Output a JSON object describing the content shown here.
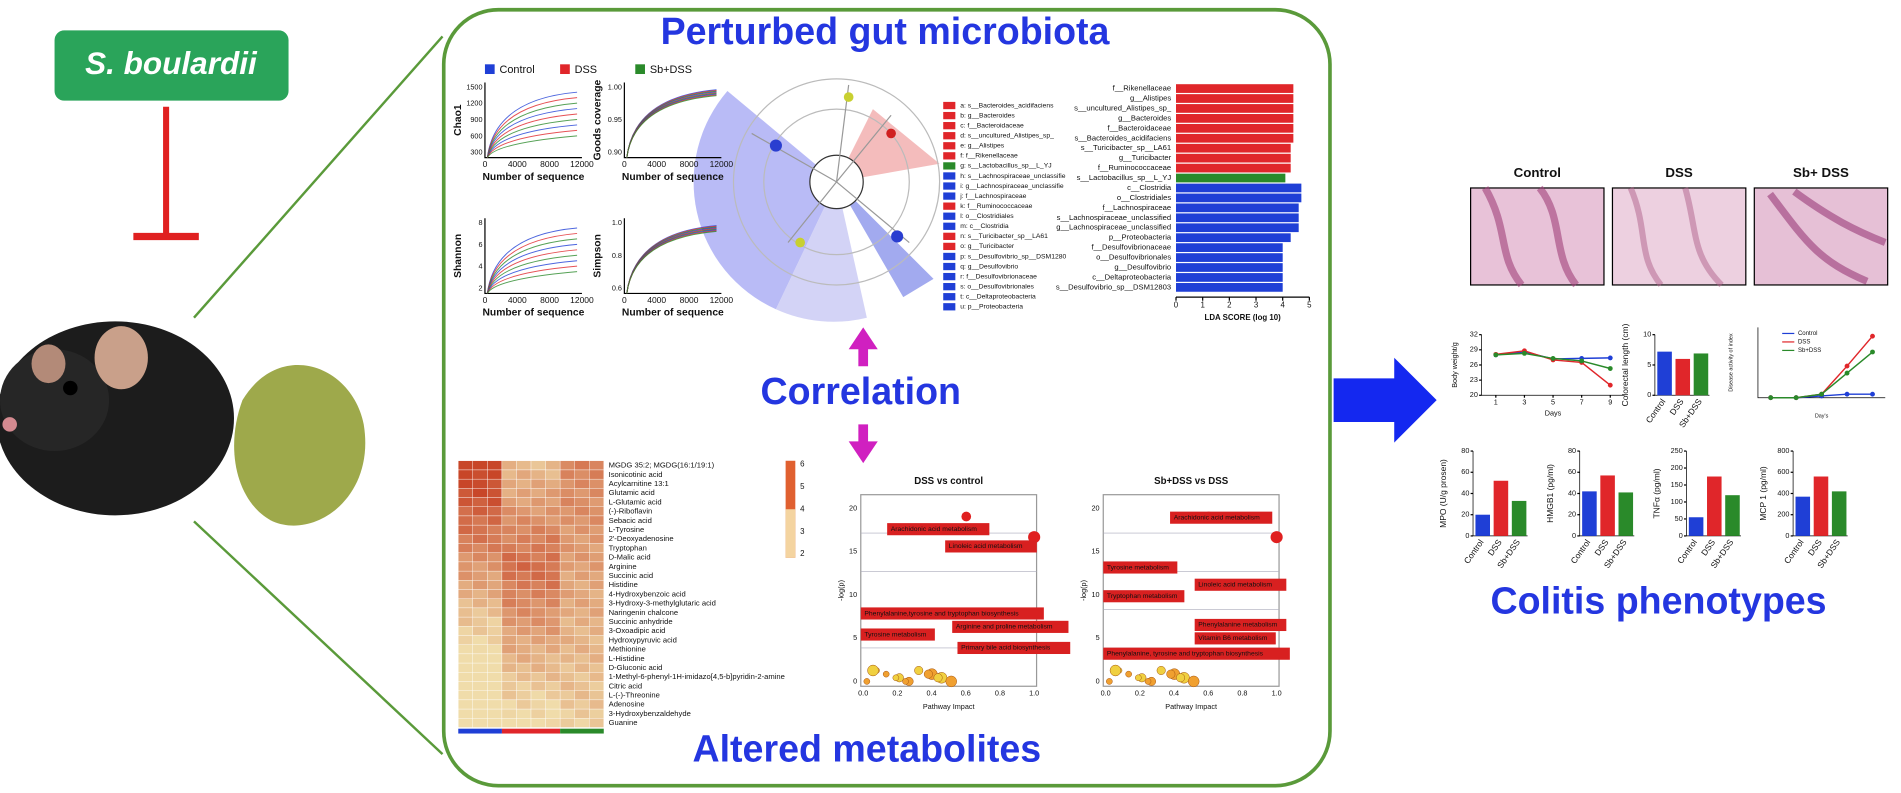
{
  "left": {
    "label": "S. boulardii"
  },
  "microbiota": {
    "title": "Perturbed gut microbiota",
    "legend": [
      {
        "name": "Control",
        "color": "#1f3fd6"
      },
      {
        "name": "DSS",
        "color": "#e0262a"
      },
      {
        "name": "Sb+DSS",
        "color": "#2a8a2a"
      }
    ],
    "alpha": [
      {
        "ylabel": "Chao1",
        "yticks": [
          "1500",
          "1200",
          "900",
          "600",
          "300"
        ]
      },
      {
        "ylabel": "Goods coverage",
        "yticks": [
          "1.00",
          "0.95",
          "0.90"
        ]
      },
      {
        "ylabel": "Shannon",
        "yticks": [
          "8",
          "6",
          "4",
          "2"
        ]
      },
      {
        "ylabel": "Simpson",
        "yticks": [
          "1.0",
          "0.8",
          "0.6"
        ]
      }
    ],
    "alpha_xlabel": "Number of sequence",
    "alpha_xticks": [
      "0",
      "4000",
      "8000",
      "12000"
    ],
    "cladogram_legend": [
      {
        "label": "a: s__Bacteroides_acidifaciens",
        "color": "#e0262a"
      },
      {
        "label": "b: g__Bacteroides",
        "color": "#e0262a"
      },
      {
        "label": "c: f__Bacteroidaceae",
        "color": "#e0262a"
      },
      {
        "label": "d: s__uncultured_Alistipes_sp_",
        "color": "#e0262a"
      },
      {
        "label": "e: g__Alistipes",
        "color": "#e0262a"
      },
      {
        "label": "f: f__Rikenellaceae",
        "color": "#e0262a"
      },
      {
        "label": "g: s__Lactobacillus_sp__L_YJ",
        "color": "#2a8a2a"
      },
      {
        "label": "h: s__Lachnospiraceae_unclassifie",
        "color": "#1f3fd6"
      },
      {
        "label": "i: g__Lachnospiraceae_unclassifie",
        "color": "#1f3fd6"
      },
      {
        "label": "j: f__Lachnospiraceae",
        "color": "#1f3fd6"
      },
      {
        "label": "k: f__Ruminococcaceae",
        "color": "#e0262a"
      },
      {
        "label": "l: o__Clostridiales",
        "color": "#1f3fd6"
      },
      {
        "label": "m: c__Clostridia",
        "color": "#1f3fd6"
      },
      {
        "label": "n: s__Turicibacter_sp__LA61",
        "color": "#e0262a"
      },
      {
        "label": "o: g__Turicibacter",
        "color": "#e0262a"
      },
      {
        "label": "p: s__Desulfovibrio_sp__DSM1280",
        "color": "#1f3fd6"
      },
      {
        "label": "q: g__Desulfovibrio",
        "color": "#1f3fd6"
      },
      {
        "label": "r: f__Desulfovibrionaceae",
        "color": "#1f3fd6"
      },
      {
        "label": "s: o__Desulfovibrionales",
        "color": "#1f3fd6"
      },
      {
        "label": "t: c__Deltaproteobacteria",
        "color": "#1f3fd6"
      },
      {
        "label": "u: p__Proteobacteria",
        "color": "#1f3fd6"
      }
    ],
    "lda": {
      "features": [
        "f__Rikenellaceae",
        "g__Alistipes",
        "s__uncultured_Alistipes_sp_",
        "g__Bacteroides",
        "f__Bacteroidaceae",
        "s__Bacteroides_acidifaciens",
        "s__Turicibacter_sp__LA61",
        "g__Turicibacter",
        "f__Ruminococcaceae",
        "s__Lactobacillus_sp__L_YJ",
        "c__Clostridia",
        "o__Clostridiales",
        "f__Lachnospiraceae",
        "s__Lachnospiraceae_unclassified",
        "g__Lachnospiraceae_unclassified",
        "p__Proteobacteria",
        "f__Desulfovibrionaceae",
        "o__Desulfovibrionales",
        "g__Desulfovibrio",
        "c__Deltaproteobacteria",
        "s__Desulfovibrio_sp__DSM12803"
      ],
      "values": [
        4.4,
        4.4,
        4.4,
        4.4,
        4.4,
        4.4,
        4.3,
        4.3,
        4.3,
        4.1,
        4.7,
        4.7,
        4.6,
        4.6,
        4.6,
        4.3,
        4.0,
        4.0,
        4.0,
        4.0,
        4.0
      ],
      "colors": [
        "#e0262a",
        "#e0262a",
        "#e0262a",
        "#e0262a",
        "#e0262a",
        "#e0262a",
        "#e0262a",
        "#e0262a",
        "#e0262a",
        "#2a8a2a",
        "#1f3fd6",
        "#1f3fd6",
        "#1f3fd6",
        "#1f3fd6",
        "#1f3fd6",
        "#1f3fd6",
        "#1f3fd6",
        "#1f3fd6",
        "#1f3fd6",
        "#1f3fd6",
        "#1f3fd6"
      ],
      "xlim": [
        0,
        5
      ],
      "xticks": [
        0,
        1,
        2,
        3,
        4,
        5
      ],
      "xlabel": "LDA SCORE (log 10)"
    }
  },
  "correlation": {
    "label": "Correlation"
  },
  "metabolites": {
    "title": "Altered metabolites",
    "heatmap_rows": [
      "MGDG 35:2; MGDG(16:1/19:1)",
      "Isonicotinic acid",
      "Acylcarnitine 13:1",
      "Glutamic acid",
      "L-Glutamic acid",
      "(-)-Riboflavin",
      "Sebacic acid",
      "L-Tyrosine",
      "2'-Deoxyadenosine",
      "Tryptophan",
      "D-Malic acid",
      "Arginine",
      "Succinic acid",
      "Histidine",
      "4-Hydroxybenzoic acid",
      "3-Hydroxy-3-methylglutaric acid",
      "Naringenin chalcone",
      "Succinic anhydride",
      "3-Oxoadipic acid",
      "Hydroxypyruvic acid",
      "Methionine",
      "L-Histidine",
      "D-Gluconic acid",
      "1-Methyl-6-phenyl-1H-imidazo[4,5-b]pyridin-2-amine",
      "Citric acid",
      "L-(-)-Threonine",
      "Adenosine",
      "3-Hydroxybenzaldehyde",
      "Guanine"
    ],
    "scale_ticks": [
      "6",
      "5",
      "4",
      "3",
      "2"
    ],
    "pathway_plots": [
      {
        "title": "DSS vs control",
        "xlabel": "Pathway Impact",
        "ylabel": "-log(p)",
        "xticks": [
          "0.0",
          "0.2",
          "0.4",
          "0.6",
          "0.8",
          "1.0"
        ],
        "yticks": [
          "0",
          "5",
          "10",
          "15",
          "20"
        ],
        "labels": [
          "Arachidonic acid metabolism",
          "Linoleic acid metabolism",
          "Phenylalanine,tyrosine and tryptophan biosynthesis",
          "Arginine and proline metabolism",
          "Tyrosine metabolism",
          "Primary bile acid biosynthesis"
        ]
      },
      {
        "title": "Sb+DSS vs DSS",
        "xlabel": "Pathway Impact",
        "ylabel": "-log(p)",
        "xticks": [
          "0.0",
          "0.2",
          "0.4",
          "0.6",
          "0.8",
          "1.0"
        ],
        "yticks": [
          "0",
          "5",
          "10",
          "15",
          "20"
        ],
        "labels": [
          "Arachidonic acid metabolism",
          "Tyrosine metabolism",
          "Linoleic acid metabolism",
          "Tryptophan metabolism",
          "Phenylalanine metabolism",
          "Vitamin B6 metabolism",
          "Phenylalanine, tyrosine and tryptophan biosynthesis"
        ]
      }
    ]
  },
  "colitis": {
    "title": "Colitis phenotypes",
    "histology": [
      "Control",
      "DSS",
      "Sb+ DSS"
    ],
    "body_weight": {
      "ylabel": "Body weight/g",
      "xlabel": "Days",
      "x": [
        1,
        3,
        5,
        7,
        9
      ],
      "xlim": [
        0,
        10
      ],
      "xticks": [
        1,
        3,
        5,
        7,
        9
      ],
      "ylim": [
        20,
        32
      ],
      "yticks": [
        20,
        23,
        26,
        29,
        32
      ],
      "series": [
        {
          "name": "Control",
          "values": [
            28,
            28.6,
            27.2,
            27.3,
            27.4
          ]
        },
        {
          "name": "DSS",
          "values": [
            28.1,
            28.8,
            27,
            26.5,
            22
          ]
        },
        {
          "name": "Sb+DSS",
          "values": [
            28,
            28.3,
            27.3,
            26.8,
            25.3
          ]
        }
      ]
    },
    "colon_length": {
      "ylabel": "Colorectal length (cm)",
      "categories": [
        "Control",
        "DSS",
        "Sb+DSS"
      ],
      "values": [
        7.2,
        6,
        6.9
      ],
      "ylim": [
        0,
        10
      ],
      "yticks": [
        0,
        5,
        10
      ]
    },
    "dai": {
      "ylabel": "Disease activity of index",
      "xlabel": "Day's",
      "x": [
        1,
        3,
        5,
        7,
        9
      ],
      "xlim": [
        0,
        10
      ],
      "ylim": [
        0,
        4
      ],
      "series": [
        {
          "name": "Control",
          "values": [
            0,
            0,
            0.1,
            0.2,
            0.2
          ]
        },
        {
          "name": "DSS",
          "values": [
            0,
            0,
            0.2,
            1.8,
            3.5
          ]
        },
        {
          "name": "Sb+DSS",
          "values": [
            0,
            0,
            0.2,
            1.4,
            2.6
          ]
        }
      ]
    },
    "cytokines": [
      {
        "ylabel": "MPO (U/g prosen)",
        "categories": [
          "Control",
          "DSS",
          "Sb+DSS"
        ],
        "values": [
          20,
          52,
          33
        ],
        "ylim": [
          0,
          80
        ],
        "yticks": [
          0,
          20,
          40,
          60,
          80
        ]
      },
      {
        "ylabel": "HMGB1 (pg/ml)",
        "categories": [
          "Control",
          "DSS",
          "Sb+DSS"
        ],
        "values": [
          42,
          57,
          41
        ],
        "ylim": [
          0,
          80
        ],
        "yticks": [
          0,
          20,
          40,
          60,
          80
        ]
      },
      {
        "ylabel": "TNFα (pg/ml)",
        "categories": [
          "Control",
          "DSS",
          "Sb+DSS"
        ],
        "values": [
          55,
          175,
          120
        ],
        "ylim": [
          0,
          250
        ],
        "yticks": [
          0,
          50,
          100,
          150,
          200,
          250
        ]
      },
      {
        "ylabel": "MCP 1 (pg/ml)",
        "categories": [
          "Control",
          "DSS",
          "Sb+DSS"
        ],
        "values": [
          370,
          560,
          420
        ],
        "ylim": [
          0,
          800
        ],
        "yticks": [
          0,
          200,
          400,
          600,
          800
        ]
      }
    ]
  }
}
